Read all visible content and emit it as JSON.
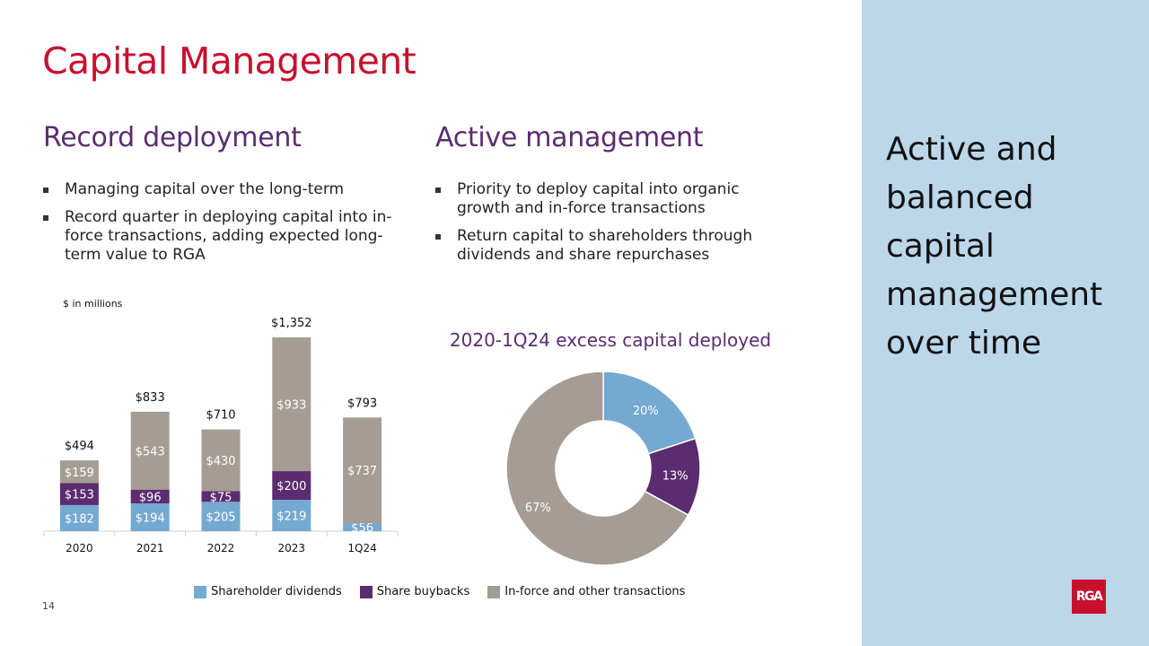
{
  "title": "Capital Management",
  "left": {
    "heading": "Record deployment",
    "bullets": [
      "Managing capital over the long-term",
      "Record quarter in deploying capital into in-force transactions, adding expected long-term value to RGA"
    ]
  },
  "middle": {
    "heading": "Active management",
    "bullets": [
      "Priority to deploy capital into organic growth and in-force transactions",
      "Return capital to shareholders through dividends and share repurchases"
    ]
  },
  "side_text": "Active and balanced capital management over time",
  "units_label": "$ in millions",
  "pie_title": "2020-1Q24 excess capital deployed",
  "legend": [
    {
      "label": "Shareholder dividends",
      "color": "#74a9d2"
    },
    {
      "label": "Share buybacks",
      "color": "#5b2c6f"
    },
    {
      "label": "In-force and other transactions",
      "color": "#a59c94"
    }
  ],
  "page_number": "14",
  "logo_text": "RGA",
  "chart_data": [
    {
      "type": "bar",
      "stacked": true,
      "categories": [
        "2020",
        "2021",
        "2022",
        "2023",
        "1Q24"
      ],
      "series": [
        {
          "name": "Shareholder dividends",
          "values": [
            182,
            194,
            205,
            219,
            56
          ],
          "labels": [
            "$182",
            "$194",
            "$205",
            "$219",
            "$56"
          ],
          "color": "#74a9d2"
        },
        {
          "name": "Share buybacks",
          "values": [
            153,
            96,
            75,
            200,
            0
          ],
          "labels": [
            "$153",
            "$96",
            "$75",
            "$200",
            ""
          ],
          "color": "#5b2c6f"
        },
        {
          "name": "In-force and other transactions",
          "values": [
            159,
            543,
            430,
            933,
            737
          ],
          "labels": [
            "$159",
            "$543",
            "$430",
            "$933",
            "$737"
          ],
          "color": "#a59c94"
        }
      ],
      "totals": [
        "$494",
        "$833",
        "$710",
        "$1,352",
        "$793"
      ],
      "ylim": [
        0,
        1352
      ],
      "ylabel": "$ in millions"
    },
    {
      "type": "pie",
      "donut": true,
      "title": "2020-1Q24 excess capital deployed",
      "slices": [
        {
          "name": "Shareholder dividends",
          "value": 20,
          "label": "20%",
          "color": "#74a9d2"
        },
        {
          "name": "Share buybacks",
          "value": 13,
          "label": "13%",
          "color": "#5b2c6f"
        },
        {
          "name": "In-force and other transactions",
          "value": 67,
          "label": "67%",
          "color": "#a59c94"
        }
      ]
    }
  ]
}
